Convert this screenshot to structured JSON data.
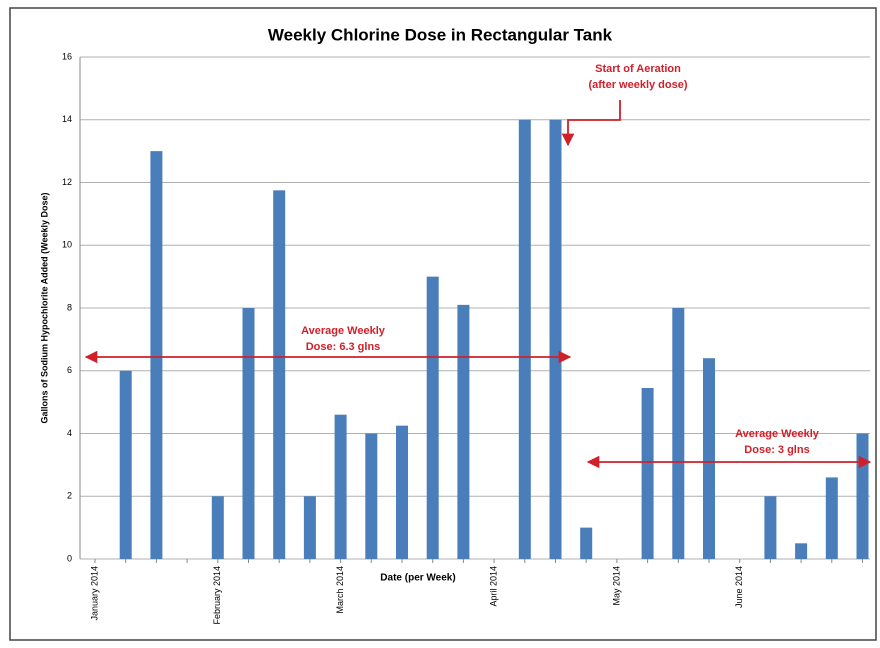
{
  "chart_data": {
    "type": "bar",
    "title": "Weekly Chlorine Dose in Rectangular Tank",
    "x_label": "Date (per Week)",
    "y_label": "Gallons of Sodium Hypochlorite Added (Weekly Dose)",
    "categories": [
      "January 2014",
      null,
      null,
      null,
      "February 2014",
      null,
      null,
      null,
      "March 2014",
      null,
      null,
      null,
      null,
      "April 2014",
      null,
      null,
      null,
      "May 2014",
      null,
      null,
      null,
      "June 2014",
      null,
      null,
      null,
      null
    ],
    "values": [
      null,
      6,
      13,
      null,
      2,
      8,
      11.75,
      2,
      4.6,
      4,
      4.25,
      9,
      8.1,
      null,
      14,
      14,
      1,
      null,
      5.45,
      8,
      6.4,
      null,
      2,
      0.5,
      2.6,
      4
    ],
    "color": "#4a7ebb",
    "ylim": [
      0,
      16
    ],
    "yticks": [
      0,
      2,
      4,
      6,
      8,
      10,
      12,
      14,
      16
    ],
    "grid": true,
    "annotations": {
      "aeration": [
        "Start of Aeration",
        "(after weekly dose)"
      ],
      "average_before": [
        "Average Weekly",
        "Dose: 6.3 glns"
      ],
      "average_after": [
        "Average Weekly",
        "Dose: 3 glns"
      ]
    }
  }
}
